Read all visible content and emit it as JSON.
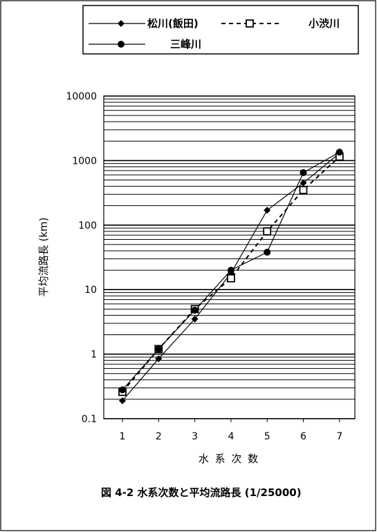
{
  "chart_data": {
    "type": "line",
    "caption": "図 4-2 水系次数と平均流路長 (1/25000)",
    "xlabel": "水 系 次 数",
    "ylabel": "平均流路長 (km)",
    "x": [
      1,
      2,
      3,
      4,
      5,
      6,
      7
    ],
    "x_tick_labels": [
      "1",
      "2",
      "3",
      "4",
      "5",
      "6",
      "7"
    ],
    "y_scale": "log",
    "ylim": [
      0.1,
      10000
    ],
    "y_tick_labels": [
      "0.1",
      "1",
      "10",
      "100",
      "1000",
      "10000"
    ],
    "grid": "horizontal minor + major",
    "legend_position": "top",
    "series": [
      {
        "name": "松川(飯田)",
        "marker": "diamond",
        "line": "solid",
        "values": [
          0.19,
          0.85,
          3.5,
          18,
          170,
          450,
          1300
        ]
      },
      {
        "name": "小渋川",
        "marker": "square",
        "line": "dashed",
        "values": [
          0.26,
          1.2,
          5,
          15,
          80,
          350,
          1150
        ]
      },
      {
        "name": "三峰川",
        "marker": "circle",
        "line": "solid",
        "values": [
          0.28,
          1.2,
          4.8,
          20,
          38,
          650,
          1350
        ]
      }
    ]
  }
}
